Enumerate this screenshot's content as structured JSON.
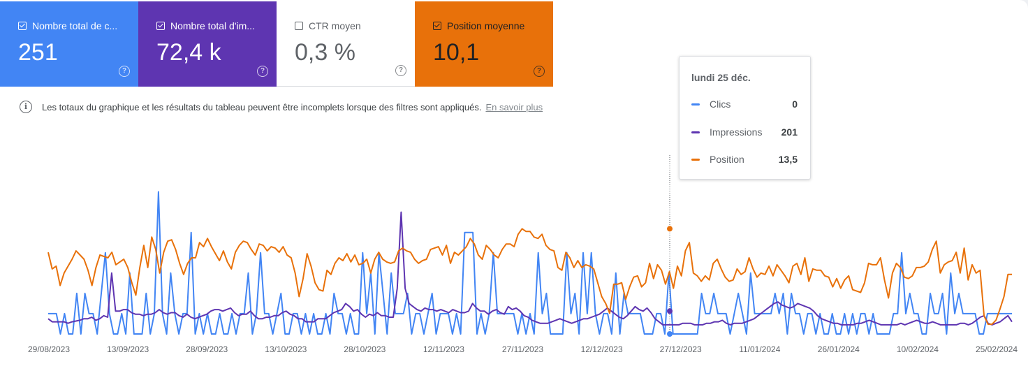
{
  "cards": [
    {
      "label": "Nombre total de c...",
      "value": "251",
      "checked": true,
      "color": "#4285f4"
    },
    {
      "label": "Nombre total d'im...",
      "value": "72,4 k",
      "checked": true,
      "color": "#5e35b1"
    },
    {
      "label": "CTR moyen",
      "value": "0,3 %",
      "checked": false,
      "color": "#ffffff"
    },
    {
      "label": "Position moyenne",
      "value": "10,1",
      "checked": true,
      "color": "#e8710a"
    }
  ],
  "help_glyph": "?",
  "info": {
    "text": "Les totaux du graphique et les résultats du tableau peuvent être incomplets lorsque des filtres sont appliqués.",
    "link": "En savoir plus"
  },
  "tooltip": {
    "date": "lundi 25 déc.",
    "rows": [
      {
        "label": "Clics",
        "value": "0",
        "color": "#4285f4"
      },
      {
        "label": "Impressions",
        "value": "201",
        "color": "#5e35b1"
      },
      {
        "label": "Position",
        "value": "13,5",
        "color": "#e8710a"
      }
    ]
  },
  "chart_data": {
    "type": "line",
    "x_labels": [
      "29/08/2023",
      "13/09/2023",
      "28/09/2023",
      "13/10/2023",
      "28/10/2023",
      "12/11/2023",
      "27/11/2023",
      "12/12/2023",
      "27/12/2023",
      "11/01/2024",
      "26/01/2024",
      "10/02/2024",
      "25/02/2024"
    ],
    "series": [
      {
        "name": "Clics",
        "color": "#4285f4",
        "values": [
          1,
          1,
          1,
          0,
          1,
          0,
          0,
          2,
          0,
          2,
          1,
          1,
          0,
          2,
          4,
          1,
          0,
          0,
          1,
          0,
          3,
          0,
          0,
          0,
          2,
          0,
          1,
          7,
          1,
          0,
          3,
          1,
          0,
          1,
          1,
          5,
          0,
          1,
          0,
          1,
          0,
          0,
          1,
          0,
          0,
          1,
          0,
          1,
          1,
          3,
          0,
          1,
          4,
          1,
          1,
          0,
          1,
          2,
          0,
          0,
          1,
          1,
          0,
          1,
          0,
          1,
          0,
          0,
          1,
          0,
          2,
          1,
          1,
          0,
          1,
          0,
          0,
          4,
          1,
          3,
          0,
          4,
          2,
          0,
          3,
          1,
          1,
          1,
          2,
          0,
          1,
          1,
          0,
          1,
          2,
          0,
          1,
          1,
          1,
          0,
          1,
          0,
          5,
          5,
          5,
          0,
          1,
          0,
          1,
          4,
          1,
          1,
          1,
          1,
          1,
          0,
          1,
          0,
          1,
          0,
          4,
          1,
          2,
          0,
          0,
          0,
          0,
          4,
          1,
          2,
          0,
          4,
          1,
          4,
          1,
          0,
          1,
          1,
          0,
          3,
          0,
          2,
          1,
          1,
          1,
          1,
          0,
          0,
          0,
          1,
          1,
          0,
          3,
          0,
          0,
          0,
          0,
          0,
          0,
          0,
          2,
          1,
          1,
          2,
          1,
          1,
          1,
          0,
          1,
          2,
          1,
          0,
          3,
          1,
          1,
          1,
          1,
          1,
          2,
          1,
          2,
          0,
          2,
          1,
          1,
          0,
          1,
          1,
          0,
          1,
          0,
          0,
          1,
          0,
          0,
          1,
          0,
          1,
          0,
          1,
          1,
          0,
          1,
          0,
          0,
          0,
          0,
          1,
          1,
          4,
          1,
          2,
          1,
          1,
          0,
          0,
          2,
          1,
          1,
          2,
          0,
          3,
          1,
          2,
          1,
          1,
          1,
          1,
          0,
          0,
          1,
          1,
          1,
          1,
          1,
          1,
          1
        ],
        "ylim": [
          0,
          7.5
        ]
      },
      {
        "name": "Impressions",
        "color": "#5e35b1",
        "values": [
          100,
          80,
          80,
          80,
          80,
          70,
          80,
          85,
          90,
          100,
          100,
          110,
          90,
          100,
          120,
          110,
          400,
          150,
          150,
          160,
          160,
          140,
          130,
          130,
          120,
          130,
          130,
          140,
          160,
          140,
          130,
          140,
          140,
          120,
          110,
          130,
          110,
          100,
          110,
          120,
          130,
          150,
          160,
          160,
          150,
          160,
          170,
          140,
          120,
          130,
          130,
          150,
          120,
          100,
          100,
          110,
          110,
          120,
          120,
          140,
          150,
          130,
          120,
          100,
          100,
          80,
          80,
          80,
          100,
          100,
          100,
          120,
          140,
          150,
          160,
          200,
          180,
          150,
          160,
          130,
          110,
          130,
          120,
          140,
          120,
          120,
          110,
          110,
          300,
          800,
          300,
          200,
          180,
          160,
          150,
          170,
          160,
          160,
          150,
          160,
          150,
          140,
          160,
          150,
          140,
          140,
          150,
          200,
          170,
          150,
          150,
          130,
          150,
          160,
          140,
          130,
          180,
          160,
          170,
          150,
          120,
          110,
          90,
          80,
          70,
          70,
          70,
          80,
          90,
          100,
          90,
          80,
          70,
          80,
          90,
          100,
          100,
          110,
          120,
          130,
          150,
          170,
          150,
          130,
          110,
          100,
          120,
          150,
          180,
          160,
          150,
          170,
          140,
          100,
          80,
          60,
          60,
          60,
          60,
          60,
          70,
          70,
          70,
          60,
          60,
          60,
          70,
          70,
          80,
          80,
          90,
          70,
          60,
          70,
          70,
          70,
          80,
          90,
          100,
          120,
          140,
          160,
          180,
          200,
          210,
          190,
          180,
          170,
          180,
          200,
          190,
          180,
          170,
          150,
          120,
          100,
          90,
          80,
          70,
          70,
          60,
          60,
          60,
          60,
          70,
          70,
          80,
          90,
          80,
          70,
          60,
          60,
          60,
          60,
          60,
          70,
          60,
          70,
          80,
          90,
          80,
          70,
          70,
          80,
          70,
          60,
          60,
          60,
          60,
          60,
          70,
          70,
          60,
          70,
          90,
          110,
          120,
          70,
          60,
          70,
          80,
          100,
          120,
          80
        ],
        "ylim": [
          0,
          1000
        ]
      },
      {
        "name": "Position",
        "color": "#e8710a",
        "values": [
          9.1,
          10.3,
          10.1,
          11.5,
          10.6,
          10.1,
          9.6,
          9.0,
          9.3,
          9.6,
          10.4,
          11.5,
          10.2,
          9.3,
          9.4,
          9.5,
          9.1,
          10.0,
          9.8,
          9.6,
          10.2,
          11.3,
          12.2,
          10.2,
          8.6,
          10.2,
          8.0,
          8.9,
          10.6,
          9.1,
          8.3,
          8.2,
          8.9,
          9.9,
          10.7,
          9.9,
          9.5,
          9.5,
          8.4,
          8.7,
          8.1,
          8.7,
          9.2,
          9.7,
          9.0,
          9.8,
          10.3,
          9.1,
          8.6,
          8.3,
          8.4,
          8.9,
          9.3,
          8.5,
          8.6,
          9.0,
          8.7,
          8.8,
          9.1,
          8.7,
          9.3,
          9.5,
          10.6,
          12.3,
          11.0,
          9.2,
          10.1,
          11.3,
          11.8,
          11.9,
          10.4,
          10.7,
          9.9,
          9.5,
          9.7,
          9.2,
          9.8,
          9.3,
          10.0,
          9.9,
          9.6,
          10.6,
          9.6,
          9.1,
          9.6,
          9.8,
          9.9,
          9.8,
          9.0,
          8.8,
          9.0,
          9.1,
          9.6,
          9.9,
          9.7,
          9.6,
          8.9,
          8.8,
          8.7,
          9.3,
          8.6,
          9.9,
          9.1,
          9.3,
          9.0,
          8.7,
          8.1,
          8.5,
          9.3,
          9.6,
          8.6,
          8.9,
          9.3,
          9.5,
          8.9,
          8.5,
          8.5,
          8.7,
          7.8,
          7.4,
          7.6,
          7.6,
          8.0,
          8.1,
          7.8,
          8.6,
          8.9,
          9.0,
          10.2,
          10.4,
          9.1,
          9.5,
          10.2,
          9.7,
          10.2,
          10.0,
          10.1,
          10.3,
          11.3,
          12.3,
          12.8,
          13.5,
          11.4,
          11.4,
          11.3,
          12.5,
          11.6,
          10.9,
          10.8,
          11.6,
          11.3,
          9.9,
          11.0,
          10.0,
          10.4,
          11.4,
          10.5,
          11.7,
          10.1,
          10.8,
          9.0,
          8.4,
          10.6,
          10.8,
          11.2,
          10.8,
          11.1,
          9.9,
          9.6,
          10.3,
          10.9,
          11.2,
          11.1,
          10.3,
          10.7,
          10.5,
          9.5,
          10.3,
          10.9,
          10.6,
          10.7,
          10.1,
          10.8,
          10.0,
          10.4,
          10.8,
          11.3,
          10.1,
          9.9,
          10.7,
          9.5,
          11.2,
          10.3,
          10.4,
          10.4,
          10.8,
          10.9,
          11.6,
          11.0,
          11.7,
          11.1,
          10.8,
          11.8,
          11.9,
          12.0,
          11.3,
          9.9,
          10.0,
          10.0,
          9.5,
          11.1,
          12.4,
          10.6,
          9.9,
          10.2,
          10.9,
          11.0,
          10.8,
          10.2,
          10.2,
          10.1,
          9.8,
          8.9,
          8.3,
          10.6,
          10.0,
          9.8,
          9.7,
          9.1,
          10.6,
          8.8,
          11.1,
          10.0,
          10.6,
          10.4,
          13.7,
          14.3,
          14.3,
          14.0,
          13.2,
          12.3,
          10.7,
          10.7
        ],
        "ylim": [
          4,
          15
        ]
      }
    ]
  }
}
